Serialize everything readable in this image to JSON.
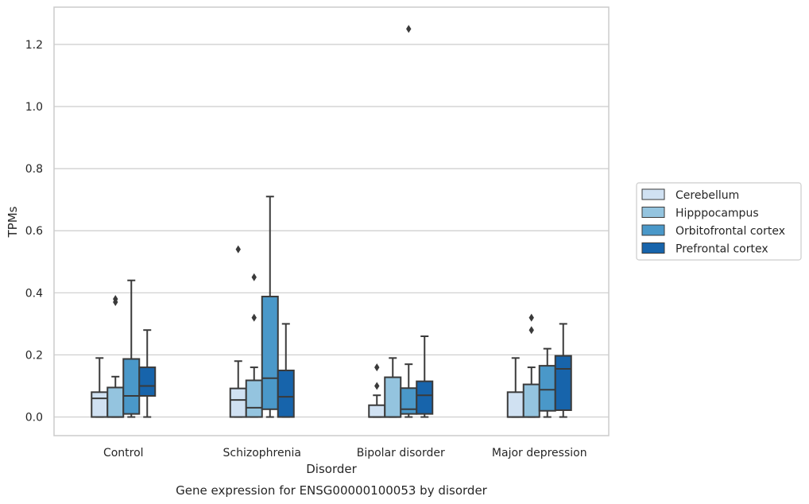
{
  "caption": "Gene expression for ENSG00000100053 by disorder",
  "chart_data": {
    "type": "box",
    "title": "",
    "xlabel": "Disorder",
    "ylabel": "TPMs",
    "ylim": [
      -0.06,
      1.32
    ],
    "yticks": [
      0.0,
      0.2,
      0.4,
      0.6,
      0.8,
      1.0,
      1.2
    ],
    "ytick_labels": [
      "0.0",
      "0.2",
      "0.4",
      "0.6",
      "0.8",
      "1.0",
      "1.2"
    ],
    "grid": "horizontal",
    "legend_position": "right",
    "categories": [
      "Control",
      "Schizophrenia",
      "Bipolar disorder",
      "Major depression"
    ],
    "series": [
      {
        "name": "Cerebellum",
        "color": "#d0e1f2",
        "boxes": [
          {
            "min": 0.0,
            "q1": 0.0,
            "median": 0.06,
            "q3": 0.08,
            "max": 0.19,
            "outliers": []
          },
          {
            "min": 0.0,
            "q1": 0.0,
            "median": 0.055,
            "q3": 0.092,
            "max": 0.18,
            "outliers": [
              0.54
            ]
          },
          {
            "min": 0.0,
            "q1": 0.0,
            "median": 0.0,
            "q3": 0.038,
            "max": 0.07,
            "outliers": [
              0.1,
              0.16
            ]
          },
          {
            "min": 0.0,
            "q1": 0.0,
            "median": 0.0,
            "q3": 0.08,
            "max": 0.19,
            "outliers": []
          }
        ]
      },
      {
        "name": "Hipppocampus",
        "color": "#94c4df",
        "boxes": [
          {
            "min": 0.0,
            "q1": 0.0,
            "median": 0.0,
            "q3": 0.095,
            "max": 0.13,
            "outliers": [
              0.37,
              0.38
            ]
          },
          {
            "min": 0.0,
            "q1": 0.0,
            "median": 0.03,
            "q3": 0.118,
            "max": 0.16,
            "outliers": [
              0.32,
              0.45
            ]
          },
          {
            "min": 0.0,
            "q1": 0.0,
            "median": 0.0,
            "q3": 0.128,
            "max": 0.19,
            "outliers": []
          },
          {
            "min": 0.0,
            "q1": 0.0,
            "median": 0.0,
            "q3": 0.105,
            "max": 0.16,
            "outliers": [
              0.28,
              0.32
            ]
          }
        ]
      },
      {
        "name": "Orbitofrontal cortex",
        "color": "#4a98c9",
        "boxes": [
          {
            "min": 0.0,
            "q1": 0.01,
            "median": 0.068,
            "q3": 0.187,
            "max": 0.44,
            "outliers": []
          },
          {
            "min": 0.0,
            "q1": 0.025,
            "median": 0.125,
            "q3": 0.388,
            "max": 0.71,
            "outliers": []
          },
          {
            "min": 0.0,
            "q1": 0.01,
            "median": 0.025,
            "q3": 0.093,
            "max": 0.17,
            "outliers": [
              1.25
            ]
          },
          {
            "min": 0.0,
            "q1": 0.02,
            "median": 0.088,
            "q3": 0.165,
            "max": 0.22,
            "outliers": []
          }
        ]
      },
      {
        "name": "Prefrontal cortex",
        "color": "#1764ab",
        "boxes": [
          {
            "min": 0.0,
            "q1": 0.068,
            "median": 0.1,
            "q3": 0.16,
            "max": 0.28,
            "outliers": []
          },
          {
            "min": 0.0,
            "q1": 0.0,
            "median": 0.065,
            "q3": 0.15,
            "max": 0.3,
            "outliers": []
          },
          {
            "min": 0.0,
            "q1": 0.01,
            "median": 0.07,
            "q3": 0.115,
            "max": 0.26,
            "outliers": []
          },
          {
            "min": 0.0,
            "q1": 0.022,
            "median": 0.155,
            "q3": 0.197,
            "max": 0.3,
            "outliers": []
          }
        ]
      }
    ]
  }
}
